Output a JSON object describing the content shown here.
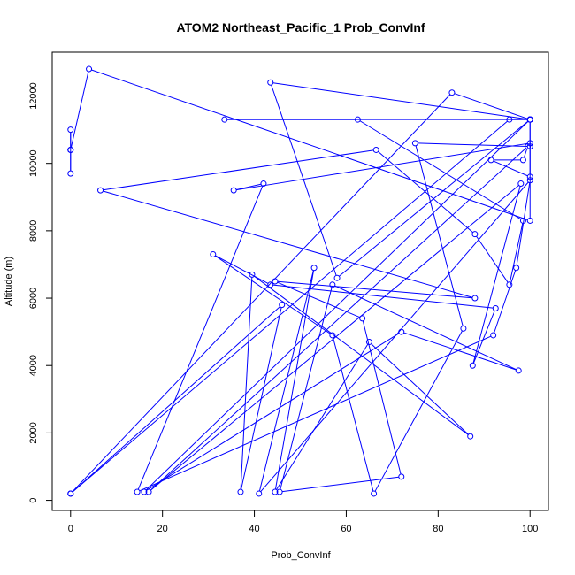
{
  "chart_data": {
    "type": "line",
    "title": "ATOM2 Northeast_Pacific_1 Prob_ConvInf",
    "xlabel": "Prob_ConvInf",
    "ylabel": "Altitude (m)",
    "xlim": [
      -4,
      104
    ],
    "ylim": [
      -300,
      13300
    ],
    "xticks": [
      "0",
      "20",
      "40",
      "60",
      "80",
      "100"
    ],
    "yticks": [
      "0",
      "2000",
      "4000",
      "6000",
      "8000",
      "10000",
      "12000"
    ],
    "grid": false,
    "legend": "none",
    "series": [
      {
        "color": "#0000ff",
        "x": [
          0,
          0,
          0,
          0,
          0,
          4,
          100,
          100,
          100,
          100,
          43.5,
          58,
          100,
          100,
          100,
          100,
          83,
          0,
          0,
          95.5,
          100,
          33.5,
          62.5,
          98.5,
          95.5,
          88,
          66.5,
          6.5,
          88,
          44.5,
          63.5,
          72,
          45.5,
          57,
          97.5,
          72,
          16,
          100,
          100,
          91.5,
          98.5,
          99.5,
          17,
          98,
          87.5,
          92.5,
          43.5,
          31,
          57,
          66,
          85.5,
          75,
          100,
          100,
          35.5,
          42,
          14.5,
          92,
          97,
          100,
          41,
          53,
          44.5,
          65,
          87,
          39.5,
          37,
          46,
          0
        ],
        "y": [
          10400,
          10400,
          11000,
          9700,
          10400,
          12800,
          8300,
          11300,
          11300,
          11300,
          12400,
          6600,
          11300,
          11300,
          11300,
          11300,
          12100,
          200,
          200,
          11300,
          11300,
          11300,
          11300,
          8300,
          6400,
          7900,
          10400,
          9200,
          6000,
          6500,
          5400,
          700,
          250,
          6400,
          3850,
          5000,
          250,
          11300,
          9600,
          10100,
          10100,
          10500,
          250,
          9400,
          4000,
          5700,
          6400,
          7300,
          4900,
          200,
          5100,
          10600,
          10500,
          10600,
          9200,
          9400,
          250,
          4900,
          6900,
          9500,
          200,
          6900,
          250,
          4700,
          1900,
          6700,
          250,
          5800,
          200
        ]
      }
    ]
  }
}
